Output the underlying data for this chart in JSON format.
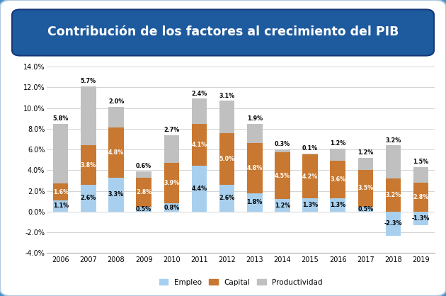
{
  "title": "Contribución de los factores al crecimiento del PIB",
  "years": [
    2006,
    2007,
    2008,
    2009,
    2010,
    2011,
    2012,
    2013,
    2014,
    2015,
    2016,
    2017,
    2018,
    2019
  ],
  "empleo": [
    1.1,
    2.6,
    3.3,
    0.5,
    0.8,
    4.4,
    2.6,
    1.8,
    1.2,
    1.3,
    1.3,
    0.5,
    -2.3,
    -1.3
  ],
  "capital": [
    1.6,
    3.8,
    4.8,
    2.8,
    3.9,
    4.1,
    5.0,
    4.8,
    4.5,
    4.2,
    3.6,
    3.5,
    3.2,
    2.8
  ],
  "productividad": [
    5.8,
    5.7,
    2.0,
    0.6,
    2.7,
    2.4,
    3.1,
    1.9,
    0.3,
    0.1,
    1.2,
    1.2,
    3.2,
    1.5
  ],
  "empleo_labels": [
    "1.1%",
    "2.6%",
    "3.3%",
    "0.5%",
    "0.8%",
    "4.4%",
    "2.6%",
    "1.8%",
    "1.2%",
    "1.3%",
    "1.3%",
    "0.5%",
    "-2.3%",
    "-1.3%"
  ],
  "capital_labels": [
    "1.6%",
    "3.8%",
    "4.8%",
    "2.8%",
    "3.9%",
    "4.1%",
    "5.0%",
    "4.8%",
    "4.5%",
    "4.2%",
    "3.6%",
    "3.5%",
    "3.2%",
    "2.8%"
  ],
  "productividad_labels": [
    "5.8%",
    "5.7%",
    "2.0%",
    "0.6%",
    "2.7%",
    "2.4%",
    "3.1%",
    "1.9%",
    "0.3%",
    "0.1%",
    "1.2%",
    "1.2%",
    "3.2%",
    "1.5%"
  ],
  "color_empleo": "#a8d0ee",
  "color_capital": "#c87830",
  "color_productividad": "#c0c0c0",
  "ylim": [
    -4.0,
    14.0
  ],
  "yticks": [
    -4.0,
    -2.0,
    0.0,
    2.0,
    4.0,
    6.0,
    8.0,
    10.0,
    12.0,
    14.0
  ],
  "bg_outer": "#4090c8",
  "bg_inner": "#ffffff",
  "title_bg": "#1e5a9e",
  "title_color": "#ffffff",
  "legend_labels": [
    "Empleo",
    "Capital",
    "Productividad"
  ]
}
